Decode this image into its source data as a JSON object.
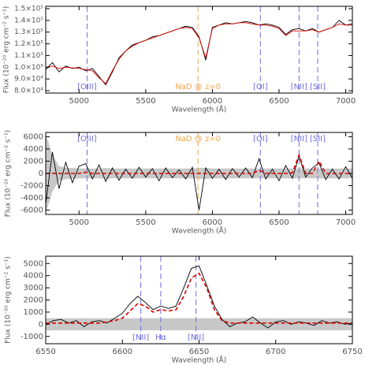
{
  "chart_data": [
    {
      "type": "line",
      "x_label": "Wavelength (Å)",
      "y_label": "Flux (10⁻²⁰ erg cm⁻² s⁻¹)",
      "xlim": [
        4750,
        7050
      ],
      "xticks": [
        5000,
        5500,
        6000,
        6500,
        7000
      ],
      "ylim": [
        78000,
        152000
      ],
      "yticks": [
        {
          "value": 80000,
          "label": "8.0×10⁴"
        },
        {
          "value": 90000,
          "label": "9.0×10⁴"
        },
        {
          "value": 100000,
          "label": "1.0×10⁵"
        },
        {
          "value": 110000,
          "label": "1.1×10⁵"
        },
        {
          "value": 120000,
          "label": "1.2×10⁵"
        },
        {
          "value": 130000,
          "label": "1.3×10⁵"
        },
        {
          "value": 140000,
          "label": "1.4×10⁵"
        },
        {
          "value": 150000,
          "label": "1.5×10⁵"
        }
      ],
      "label_position": "bottom",
      "x": [
        4750,
        4800,
        4850,
        4900,
        4950,
        5000,
        5050,
        5100,
        5150,
        5200,
        5250,
        5300,
        5350,
        5400,
        5450,
        5500,
        5550,
        5600,
        5650,
        5700,
        5750,
        5800,
        5850,
        5900,
        5950,
        6000,
        6050,
        6100,
        6150,
        6200,
        6250,
        6300,
        6350,
        6400,
        6450,
        6500,
        6550,
        6600,
        6650,
        6700,
        6750,
        6800,
        6850,
        6900,
        6950,
        7000,
        7050
      ],
      "series": [
        {
          "color": "#000000",
          "dashed": false,
          "values": [
            98000,
            104000,
            96000,
            101000,
            99000,
            100000,
            97000,
            99000,
            92000,
            85000,
            96000,
            108000,
            114000,
            119000,
            121000,
            123000,
            126000,
            127000,
            129000,
            131000,
            133000,
            135000,
            134000,
            126000,
            106000,
            134000,
            136000,
            138000,
            137000,
            138000,
            139000,
            138000,
            136000,
            137000,
            136000,
            134000,
            128000,
            132000,
            133000,
            131000,
            133000,
            130000,
            132000,
            134000,
            140000,
            136000,
            137000
          ]
        },
        {
          "color": "#e00000",
          "dashed": false,
          "values": [
            100000,
            101000,
            99000,
            100000,
            99500,
            99000,
            98000,
            97000,
            91000,
            86000,
            97000,
            107000,
            114000,
            118000,
            121000,
            123000,
            125000,
            127000,
            129000,
            131000,
            133000,
            134000,
            133000,
            125000,
            108000,
            133000,
            136000,
            137000,
            137000,
            138000,
            138000,
            137000,
            136000,
            136000,
            135000,
            133000,
            127000,
            131000,
            131000,
            131000,
            132000,
            130000,
            132000,
            134000,
            137000,
            136000,
            136000
          ]
        }
      ],
      "lines": [
        {
          "x": 5060,
          "label": "[OIII]",
          "color": "#6f6fdf"
        },
        {
          "x": 5892,
          "label": "NaD @ z=0",
          "color": "#f5a54a"
        },
        {
          "x": 6360,
          "label": "[OI]",
          "color": "#6f6fdf"
        },
        {
          "x": 6650,
          "label": "[NII]",
          "color": "#6f6fdf"
        },
        {
          "x": 6790,
          "label": "[SII]",
          "color": "#6f6fdf"
        }
      ]
    },
    {
      "type": "line",
      "x_label": "Wavelength (Å)",
      "y_label": "Flux (10⁻²⁰ erg cm⁻² s⁻¹)",
      "xlim": [
        4750,
        7050
      ],
      "xticks": [
        5000,
        5500,
        6000,
        6500,
        7000
      ],
      "ylim": [
        -6700,
        6700
      ],
      "yticks": [
        -6000,
        -4000,
        -2000,
        0,
        2000,
        4000,
        6000
      ],
      "label_position": "top",
      "x": [
        4750,
        4800,
        4850,
        4900,
        4950,
        5000,
        5050,
        5100,
        5150,
        5200,
        5250,
        5300,
        5350,
        5400,
        5450,
        5500,
        5550,
        5600,
        5650,
        5700,
        5750,
        5800,
        5850,
        5900,
        5950,
        6000,
        6050,
        6100,
        6150,
        6200,
        6250,
        6300,
        6350,
        6400,
        6450,
        6500,
        6550,
        6600,
        6650,
        6700,
        6750,
        6800,
        6850,
        6900,
        6950,
        7000,
        7050
      ],
      "band": [
        6500,
        3000,
        1200,
        900,
        900,
        800,
        800,
        800,
        800,
        900,
        800,
        800,
        800,
        800,
        800,
        800,
        800,
        800,
        800,
        800,
        800,
        800,
        800,
        900,
        900,
        800,
        800,
        800,
        800,
        800,
        800,
        800,
        800,
        800,
        800,
        800,
        800,
        800,
        800,
        800,
        800,
        800,
        800,
        800,
        800,
        800,
        800
      ],
      "series": [
        {
          "color": "#000000",
          "dashed": false,
          "values": [
            -5000,
            3500,
            -2500,
            1800,
            -1500,
            1200,
            1600,
            -900,
            1400,
            -1300,
            900,
            -1100,
            700,
            -800,
            1000,
            -600,
            800,
            -1200,
            900,
            -700,
            600,
            -900,
            1000,
            -6000,
            900,
            -800,
            700,
            -1000,
            800,
            -600,
            900,
            -700,
            2400,
            -900,
            700,
            -1200,
            1300,
            -800,
            2800,
            -600,
            900,
            1700,
            -1000,
            700,
            -900,
            1100,
            -800
          ]
        },
        {
          "color": "#e00000",
          "dashed": true,
          "values": [
            0,
            0,
            0,
            0,
            0,
            0,
            200,
            0,
            0,
            0,
            0,
            0,
            0,
            0,
            0,
            0,
            0,
            0,
            0,
            0,
            0,
            0,
            0,
            0,
            0,
            0,
            0,
            0,
            0,
            0,
            0,
            0,
            500,
            0,
            0,
            0,
            0,
            100,
            3000,
            0,
            0,
            2000,
            0,
            0,
            0,
            0,
            0
          ]
        }
      ],
      "lines": [
        {
          "x": 5060,
          "label": "[OIII]",
          "color": "#6f6fdf"
        },
        {
          "x": 5892,
          "label": "NaD @ z=0",
          "color": "#f5a54a"
        },
        {
          "x": 6360,
          "label": "[OI]",
          "color": "#6f6fdf"
        },
        {
          "x": 6650,
          "label": "[NII]",
          "color": "#6f6fdf"
        },
        {
          "x": 6790,
          "label": "[SII]",
          "color": "#6f6fdf"
        }
      ]
    },
    {
      "type": "line",
      "x_label": "Wavelength (Å)",
      "y_label": "Flux (10⁻²⁰ erg cm⁻² s⁻¹)",
      "xlim": [
        6550,
        6750
      ],
      "xticks": [
        6550,
        6600,
        6650,
        6700,
        6750
      ],
      "ylim": [
        -1600,
        5600
      ],
      "yticks": [
        -1000,
        0,
        1000,
        2000,
        3000,
        4000,
        5000
      ],
      "label_position": "bottom",
      "x": [
        6550,
        6555,
        6560,
        6565,
        6570,
        6575,
        6580,
        6585,
        6590,
        6595,
        6600,
        6605,
        6610,
        6615,
        6620,
        6625,
        6630,
        6635,
        6640,
        6645,
        6650,
        6655,
        6660,
        6665,
        6670,
        6675,
        6680,
        6685,
        6690,
        6695,
        6700,
        6705,
        6710,
        6715,
        6720,
        6725,
        6730,
        6735,
        6740,
        6745,
        6750
      ],
      "band": [
        500,
        500,
        500,
        500,
        500,
        500,
        500,
        500,
        500,
        500,
        500,
        500,
        500,
        500,
        500,
        500,
        500,
        500,
        500,
        500,
        500,
        500,
        500,
        500,
        500,
        500,
        500,
        500,
        500,
        500,
        500,
        500,
        500,
        500,
        500,
        500,
        500,
        500,
        500,
        500,
        500
      ],
      "series": [
        {
          "color": "#000000",
          "dashed": false,
          "values": [
            0,
            300,
            400,
            100,
            300,
            -200,
            200,
            300,
            100,
            500,
            900,
            1700,
            2300,
            1800,
            1200,
            1500,
            1300,
            1500,
            3000,
            4600,
            4800,
            3200,
            1500,
            400,
            -200,
            100,
            200,
            600,
            100,
            -300,
            200,
            300,
            0,
            200,
            100,
            -100,
            300,
            100,
            200,
            0,
            100
          ]
        },
        {
          "color": "#e00000",
          "dashed": true,
          "values": [
            100,
            100,
            100,
            100,
            100,
            100,
            100,
            100,
            200,
            300,
            500,
            1100,
            1700,
            1500,
            1000,
            1200,
            1100,
            1200,
            2300,
            3800,
            4200,
            3000,
            1200,
            300,
            100,
            100,
            100,
            100,
            100,
            100,
            100,
            100,
            100,
            100,
            100,
            100,
            100,
            100,
            100,
            100,
            100
          ]
        }
      ],
      "lines": [
        {
          "x": 6612,
          "label": "[NII]",
          "color": "#6f6fdf"
        },
        {
          "x": 6625,
          "label": "Hα",
          "color": "#6f6fdf"
        },
        {
          "x": 6648,
          "label": "[NII]",
          "color": "#6f6fdf"
        }
      ]
    }
  ]
}
